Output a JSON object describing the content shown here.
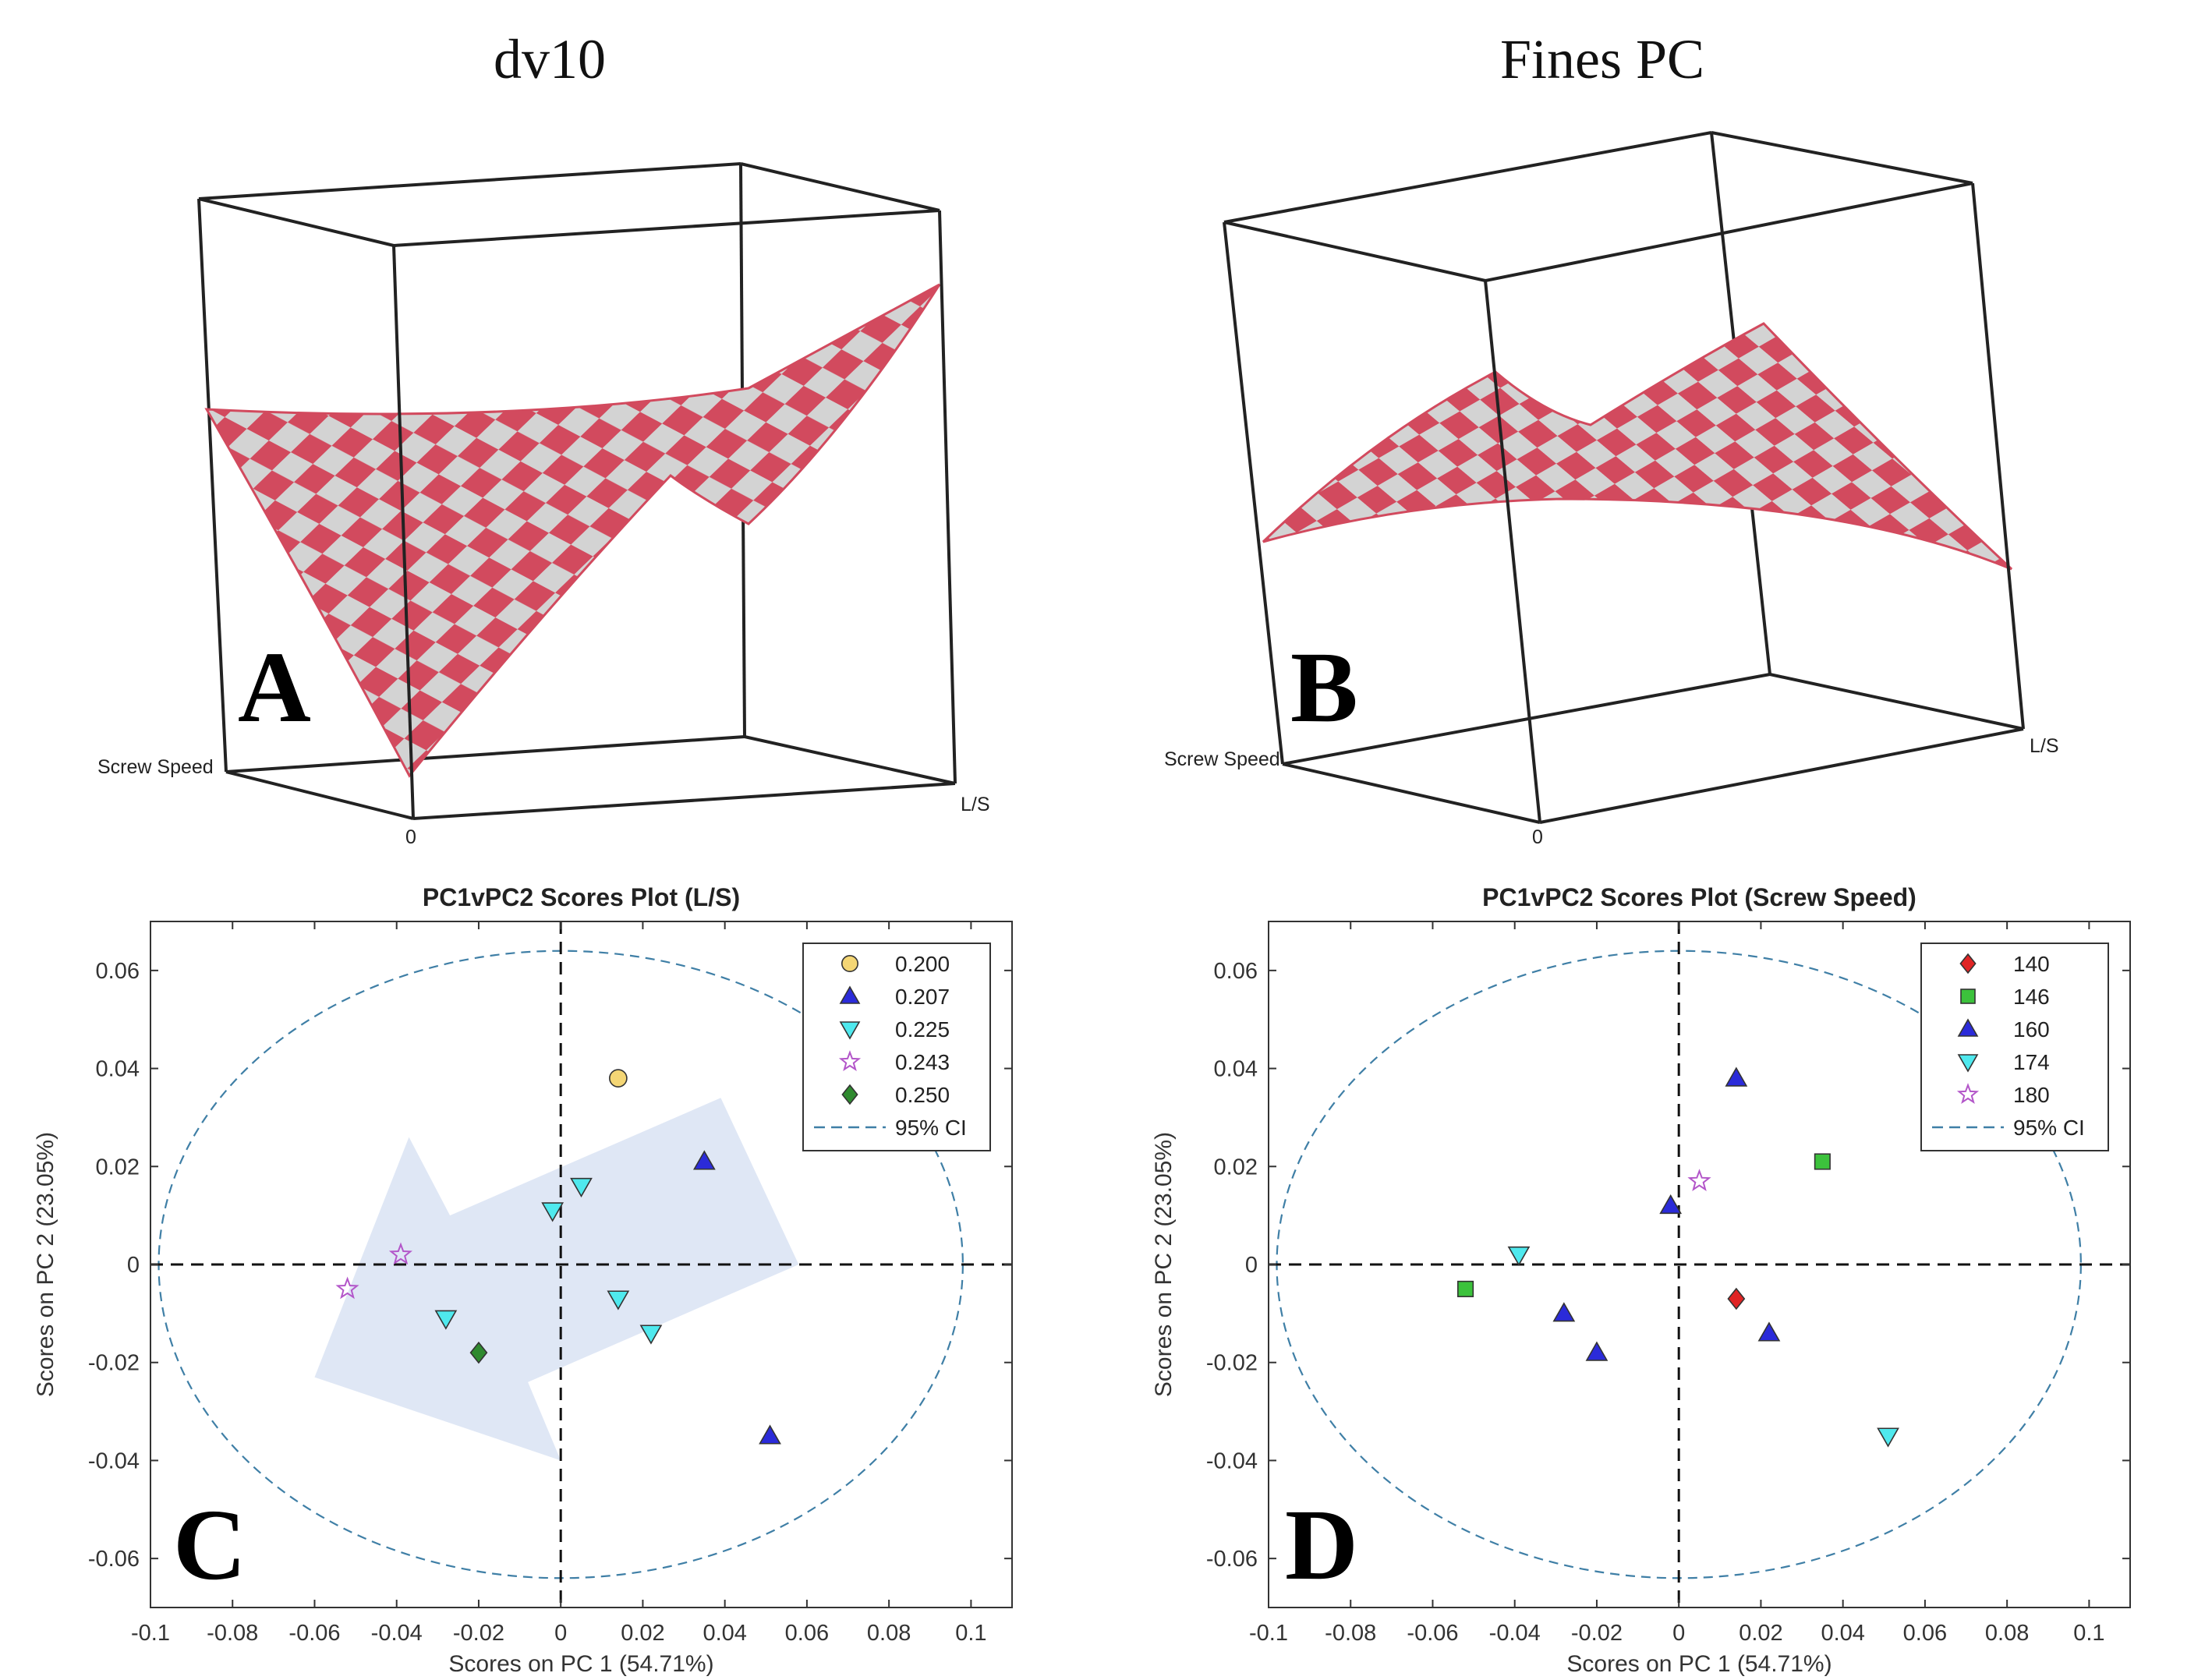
{
  "colors": {
    "surface_red": "#d24a5e",
    "surface_grey": "#d3d3d3",
    "ellipse": "#3f7fa6",
    "arrow": "#dfe7f5",
    "s0200": "#f4d675",
    "s0207": "#2b2bd9",
    "s0225": "#4fe9ee",
    "s0243": "#b356c9",
    "s0250": "#2f8a2f",
    "s140": "#e02424",
    "s146": "#3cc23c",
    "s160": "#2b2bd9",
    "s174": "#4fe9ee",
    "s180": "#b356c9"
  },
  "titles": {
    "a": "dv10",
    "b": "Fines PC"
  },
  "letters": {
    "a": "A",
    "b": "B",
    "c": "C",
    "d": "D"
  },
  "surface_a": {
    "screw_label": "Screw Speed",
    "ls_label": "L/S",
    "zero_label": "0"
  },
  "surface_b": {
    "screw_label": "Screw Speed",
    "ls_label": "L/S",
    "zero_label": "0"
  },
  "chart_data": [
    {
      "type": "scatter",
      "title": "PC1vPC2 Scores Plot (L/S)",
      "xlabel": "Scores on PC 1 (54.71%)",
      "ylabel": "Scores on PC 2 (23.05%)",
      "xlim": [
        -0.1,
        0.11
      ],
      "ylim": [
        -0.07,
        0.07
      ],
      "xticks": [
        -0.1,
        -0.08,
        -0.06,
        -0.04,
        -0.02,
        0,
        0.02,
        0.04,
        0.06,
        0.08,
        0.1
      ],
      "xtick_labels": [
        "-0.1",
        "-0.08",
        "-0.06",
        "-0.04",
        "-0.02",
        "0",
        "0.02",
        "0.04",
        "0.06",
        "0.08",
        "0.1"
      ],
      "yticks": [
        0.06,
        0.04,
        0.02,
        0,
        -0.02,
        -0.04,
        -0.06
      ],
      "ytick_labels": [
        "0.06",
        "0.04",
        "0.02",
        "0",
        "-0.02",
        "-0.04",
        "-0.06"
      ],
      "ellipse_label": "95% CI",
      "ellipse": {
        "rx": 0.098,
        "ry": 0.064
      },
      "legend_position": "top-right",
      "series": [
        {
          "name": "0.200",
          "marker": "circle",
          "color": "#f4d675",
          "points": [
            [
              0.014,
              0.038
            ]
          ]
        },
        {
          "name": "0.207",
          "marker": "triangle-up",
          "color": "#2b2bd9",
          "points": [
            [
              0.035,
              0.021
            ],
            [
              0.051,
              -0.035
            ]
          ]
        },
        {
          "name": "0.225",
          "marker": "triangle-down",
          "color": "#4fe9ee",
          "points": [
            [
              0.005,
              0.016
            ],
            [
              -0.002,
              0.011
            ],
            [
              0.014,
              -0.007
            ],
            [
              0.022,
              -0.014
            ],
            [
              -0.028,
              -0.011
            ]
          ]
        },
        {
          "name": "0.243",
          "marker": "star",
          "color": "#b356c9",
          "points": [
            [
              -0.039,
              0.002
            ],
            [
              -0.052,
              -0.005
            ]
          ]
        },
        {
          "name": "0.250",
          "marker": "diamond",
          "color": "#2f8a2f",
          "points": [
            [
              -0.02,
              -0.018
            ]
          ]
        }
      ]
    },
    {
      "type": "scatter",
      "title": "PC1vPC2 Scores Plot (Screw Speed)",
      "xlabel": "Scores on PC 1 (54.71%)",
      "ylabel": "Scores on PC 2 (23.05%)",
      "xlim": [
        -0.1,
        0.11
      ],
      "ylim": [
        -0.07,
        0.07
      ],
      "xticks": [
        -0.1,
        -0.08,
        -0.06,
        -0.04,
        -0.02,
        0,
        0.02,
        0.04,
        0.06,
        0.08,
        0.1
      ],
      "xtick_labels": [
        "-0.1",
        "-0.08",
        "-0.06",
        "-0.04",
        "-0.02",
        "0",
        "0.02",
        "0.04",
        "0.06",
        "0.08",
        "0.1"
      ],
      "yticks": [
        0.06,
        0.04,
        0.02,
        0,
        -0.02,
        -0.04,
        -0.06
      ],
      "ytick_labels": [
        "0.06",
        "0.04",
        "0.02",
        "0",
        "-0.02",
        "-0.04",
        "-0.06"
      ],
      "ellipse_label": "95% CI",
      "ellipse": {
        "rx": 0.098,
        "ry": 0.064
      },
      "legend_position": "top-right",
      "series": [
        {
          "name": "140",
          "marker": "diamond",
          "color": "#e02424",
          "points": [
            [
              0.014,
              -0.007
            ]
          ]
        },
        {
          "name": "146",
          "marker": "square",
          "color": "#3cc23c",
          "points": [
            [
              0.035,
              0.021
            ],
            [
              -0.052,
              -0.005
            ]
          ]
        },
        {
          "name": "160",
          "marker": "triangle-up",
          "color": "#2b2bd9",
          "points": [
            [
              0.014,
              0.038
            ],
            [
              -0.002,
              0.012
            ],
            [
              -0.028,
              -0.01
            ],
            [
              -0.02,
              -0.018
            ],
            [
              0.022,
              -0.014
            ]
          ]
        },
        {
          "name": "174",
          "marker": "triangle-down",
          "color": "#4fe9ee",
          "points": [
            [
              -0.039,
              0.002
            ],
            [
              0.051,
              -0.035
            ]
          ]
        },
        {
          "name": "180",
          "marker": "star",
          "color": "#b356c9",
          "points": [
            [
              0.005,
              0.017
            ]
          ]
        }
      ]
    }
  ]
}
